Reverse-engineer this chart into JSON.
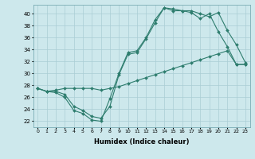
{
  "xlabel": "Humidex (Indice chaleur)",
  "xlim": [
    -0.5,
    23.5
  ],
  "ylim": [
    21,
    41.5
  ],
  "yticks": [
    22,
    24,
    26,
    28,
    30,
    32,
    34,
    36,
    38,
    40
  ],
  "xticks": [
    0,
    1,
    2,
    3,
    4,
    5,
    6,
    7,
    8,
    9,
    10,
    11,
    12,
    13,
    14,
    15,
    16,
    17,
    18,
    19,
    20,
    21,
    22,
    23
  ],
  "bg_color": "#cde8ec",
  "grid_color": "#aacdd4",
  "line_color": "#2e7d6e",
  "line1_y": [
    27.5,
    27.0,
    26.8,
    26.0,
    23.8,
    23.3,
    22.2,
    22.0,
    25.8,
    30.0,
    33.5,
    33.8,
    36.0,
    39.0,
    41.0,
    40.5,
    40.5,
    40.2,
    39.2,
    40.0,
    37.0,
    34.5,
    31.5,
    31.5
  ],
  "line2_y": [
    27.5,
    27.0,
    27.0,
    26.5,
    24.5,
    23.8,
    22.8,
    22.5,
    24.5,
    29.8,
    33.2,
    33.5,
    35.8,
    38.5,
    41.0,
    40.8,
    40.5,
    40.5,
    40.0,
    39.5,
    40.2,
    37.2,
    34.8,
    31.8
  ],
  "line3_y": [
    27.5,
    27.0,
    27.2,
    27.5,
    27.5,
    27.5,
    27.5,
    27.2,
    27.5,
    27.8,
    28.3,
    28.8,
    29.3,
    29.8,
    30.3,
    30.8,
    31.3,
    31.8,
    32.3,
    32.8,
    33.3,
    33.8,
    31.5,
    31.5
  ]
}
